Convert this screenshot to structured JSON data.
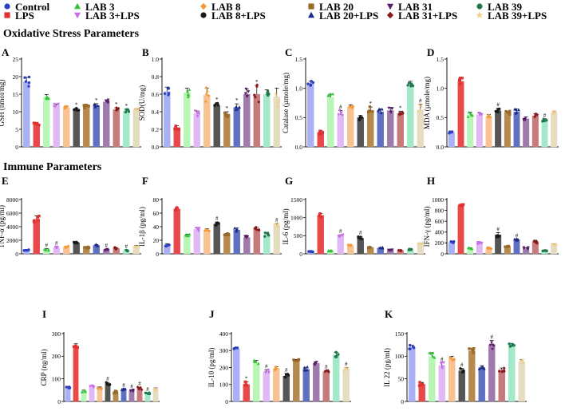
{
  "groups": [
    {
      "name": "Control",
      "color": "#2b3fbf",
      "marker": "circle"
    },
    {
      "name": "LPS",
      "color": "#e03030",
      "marker": "square"
    },
    {
      "name": "LAB 3",
      "color": "#35c43a",
      "marker": "triangle-up"
    },
    {
      "name": "LAB 3+LPS",
      "color": "#c86ee8",
      "marker": "triangle-down"
    },
    {
      "name": "LAB 8",
      "color": "#f39a3a",
      "marker": "diamond"
    },
    {
      "name": "LAB 8+LPS",
      "color": "#1a1a1a",
      "marker": "circle"
    },
    {
      "name": "LAB 20",
      "color": "#9a6a2a",
      "marker": "square"
    },
    {
      "name": "LAB 20+LPS",
      "color": "#1e2a8a",
      "marker": "triangle-up"
    },
    {
      "name": "LAB 31",
      "color": "#5a1a6a",
      "marker": "triangle-down"
    },
    {
      "name": "LAB 31+LPS",
      "color": "#8a1a1a",
      "marker": "diamond"
    },
    {
      "name": "LAB 39",
      "color": "#1e7a4a",
      "marker": "circle"
    },
    {
      "name": "LAB 39+LPS",
      "color": "#f0cf90",
      "marker": "star"
    }
  ],
  "bar_colors": [
    "#aab0f5",
    "#e84a4a",
    "#b9f5b4",
    "#e0b8f5",
    "#f8c293",
    "#555555",
    "#b58a4f",
    "#6070c0",
    "#a07aac",
    "#c77a7a",
    "#a3e8c8",
    "#e6dcc0"
  ],
  "section_titles": {
    "oxidative": "Oxidative Stress Parameters",
    "immune": "Immune Parameters"
  },
  "chart_data": [
    {
      "panel": "A",
      "type": "bar",
      "ylabel": "GSH (nmol/mg)",
      "ylim": [
        0,
        25
      ],
      "yticks": [
        0,
        5,
        10,
        15,
        20,
        25
      ],
      "values": [
        18.5,
        6.5,
        14.2,
        11.8,
        11.2,
        10.4,
        11.5,
        11.8,
        12.8,
        10.6,
        10.2,
        10.5
      ],
      "errors": [
        1.3,
        0.4,
        0.7,
        0.4,
        0.4,
        0.6,
        0.5,
        0.5,
        0.6,
        0.5,
        0.5,
        0.4
      ],
      "annotations": [
        "",
        "",
        "",
        "",
        "",
        "*",
        "",
        "*",
        "",
        "*",
        "*",
        ""
      ]
    },
    {
      "panel": "B",
      "type": "bar",
      "ylabel": "SOD(U/mg)",
      "ylim": [
        0,
        1.0
      ],
      "yticks": [
        0.0,
        0.2,
        0.4,
        0.6,
        0.8,
        1.0
      ],
      "values": [
        0.63,
        0.22,
        0.62,
        0.38,
        0.59,
        0.47,
        0.37,
        0.45,
        0.6,
        0.6,
        0.6,
        0.57
      ],
      "errors": [
        0.05,
        0.02,
        0.05,
        0.03,
        0.08,
        0.03,
        0.03,
        0.04,
        0.06,
        0.1,
        0.05,
        0.1
      ],
      "annotations": [
        "",
        "",
        "",
        "",
        "",
        "*",
        "*",
        "*",
        "",
        "*",
        "",
        ""
      ]
    },
    {
      "panel": "C",
      "type": "bar",
      "ylabel": "Catalase (µmole/mg)",
      "ylim": [
        0,
        1.5
      ],
      "yticks": [
        0.0,
        0.5,
        1.0,
        1.5
      ],
      "values": [
        1.08,
        0.25,
        0.85,
        0.55,
        0.68,
        0.5,
        0.62,
        0.6,
        0.62,
        0.57,
        1.02,
        0.63
      ],
      "errors": [
        0.04,
        0.03,
        0.05,
        0.07,
        0.04,
        0.04,
        0.06,
        0.05,
        0.05,
        0.04,
        0.1,
        0.1
      ],
      "annotations": [
        "",
        "",
        "",
        "#",
        "",
        "",
        "*",
        "",
        "",
        "*",
        "",
        "#"
      ]
    },
    {
      "panel": "D",
      "type": "bar",
      "ylabel": "MDA (µmole/mg)",
      "ylim": [
        0,
        1.5
      ],
      "yticks": [
        0.0,
        0.5,
        1.0,
        1.5
      ],
      "values": [
        0.25,
        1.12,
        0.55,
        0.55,
        0.52,
        0.62,
        0.58,
        0.6,
        0.48,
        0.53,
        0.45,
        0.58
      ],
      "errors": [
        0.02,
        0.07,
        0.04,
        0.03,
        0.03,
        0.04,
        0.03,
        0.05,
        0.03,
        0.04,
        0.03,
        0.03
      ],
      "annotations": [
        "",
        "",
        "",
        "",
        "",
        "#",
        "",
        "",
        "",
        "",
        "#",
        ""
      ]
    },
    {
      "panel": "E",
      "type": "bar",
      "ylabel": "TNF-α (pg/ml)",
      "ylim": [
        0,
        8000
      ],
      "yticks": [
        0,
        2000,
        4000,
        6000,
        8000
      ],
      "values": [
        500,
        5100,
        600,
        900,
        1000,
        1600,
        900,
        1250,
        600,
        800,
        500,
        1100
      ],
      "errors": [
        120,
        500,
        150,
        130,
        120,
        120,
        130,
        120,
        100,
        110,
        100,
        120
      ],
      "annotations": [
        "",
        "",
        "#",
        "#",
        "",
        "",
        "",
        "",
        "#",
        "",
        "#",
        ""
      ]
    },
    {
      "panel": "F",
      "type": "bar",
      "ylabel": "IL-1β (pg/ml)",
      "ylim": [
        0,
        80
      ],
      "yticks": [
        0,
        20,
        40,
        60,
        80
      ],
      "values": [
        13,
        66,
        27,
        36,
        35,
        44,
        28,
        35,
        24,
        37,
        28,
        42
      ],
      "errors": [
        2,
        2,
        2,
        2,
        2,
        3,
        2,
        3,
        2,
        2,
        3,
        3
      ],
      "annotations": [
        "",
        "",
        "",
        "",
        "",
        "#",
        "",
        "",
        "",
        "",
        "",
        "#"
      ]
    },
    {
      "panel": "G",
      "type": "bar",
      "ylabel": "IL-6 (pg/ml)",
      "ylim": [
        0,
        1500
      ],
      "yticks": [
        0,
        500,
        1000,
        1500
      ],
      "values": [
        60,
        1060,
        80,
        500,
        230,
        430,
        170,
        160,
        100,
        90,
        120,
        280
      ],
      "errors": [
        10,
        50,
        10,
        25,
        15,
        50,
        10,
        15,
        10,
        10,
        15,
        15
      ],
      "annotations": [
        "",
        "",
        "",
        "#",
        "",
        "#",
        "",
        "",
        "",
        "",
        "",
        ""
      ]
    },
    {
      "panel": "H",
      "type": "bar",
      "ylabel": "IFN-γ (pg/ml)",
      "ylim": [
        0,
        1000
      ],
      "yticks": [
        0,
        200,
        400,
        600,
        800,
        1000
      ],
      "values": [
        210,
        890,
        100,
        200,
        100,
        350,
        140,
        260,
        100,
        220,
        60,
        170
      ],
      "errors": [
        15,
        20,
        10,
        20,
        10,
        40,
        10,
        15,
        15,
        30,
        10,
        10
      ],
      "annotations": [
        "",
        "",
        "",
        "",
        "",
        "#",
        "",
        "#",
        "",
        "",
        "",
        ""
      ]
    },
    {
      "panel": "I",
      "type": "bar",
      "ylabel": "CRP (ng/ml)",
      "ylim": [
        0,
        300
      ],
      "yticks": [
        0,
        100,
        200,
        300
      ],
      "values": [
        62,
        240,
        45,
        65,
        60,
        78,
        42,
        52,
        48,
        55,
        35,
        55
      ],
      "errors": [
        4,
        15,
        5,
        5,
        4,
        6,
        5,
        5,
        4,
        8,
        4,
        5
      ],
      "annotations": [
        "",
        "",
        "",
        "",
        "",
        "#",
        "",
        "#",
        "#",
        "#",
        "#",
        ""
      ]
    },
    {
      "panel": "J",
      "type": "bar",
      "ylabel": "IL-10 (pg/ml)",
      "ylim": [
        0,
        400
      ],
      "yticks": [
        0,
        100,
        200,
        300,
        400
      ],
      "values": [
        310,
        100,
        230,
        175,
        195,
        150,
        240,
        190,
        225,
        175,
        275,
        190
      ],
      "errors": [
        8,
        15,
        12,
        10,
        10,
        15,
        8,
        12,
        8,
        8,
        15,
        10
      ],
      "annotations": [
        "",
        "*",
        "",
        "#",
        "",
        "#",
        "",
        "",
        "",
        "#",
        "",
        "#"
      ]
    },
    {
      "panel": "K",
      "type": "bar",
      "ylabel": "IL 22 (pg/ml)",
      "ylim": [
        0,
        150
      ],
      "yticks": [
        0,
        50,
        100,
        150
      ],
      "values": [
        120,
        38,
        100,
        80,
        95,
        68,
        112,
        75,
        125,
        70,
        125,
        88
      ],
      "errors": [
        4,
        4,
        8,
        6,
        5,
        5,
        5,
        4,
        10,
        4,
        3,
        4
      ],
      "annotations": [
        "",
        "",
        "",
        "#",
        "",
        "#",
        "",
        "",
        "#",
        "",
        "",
        ""
      ]
    }
  ]
}
